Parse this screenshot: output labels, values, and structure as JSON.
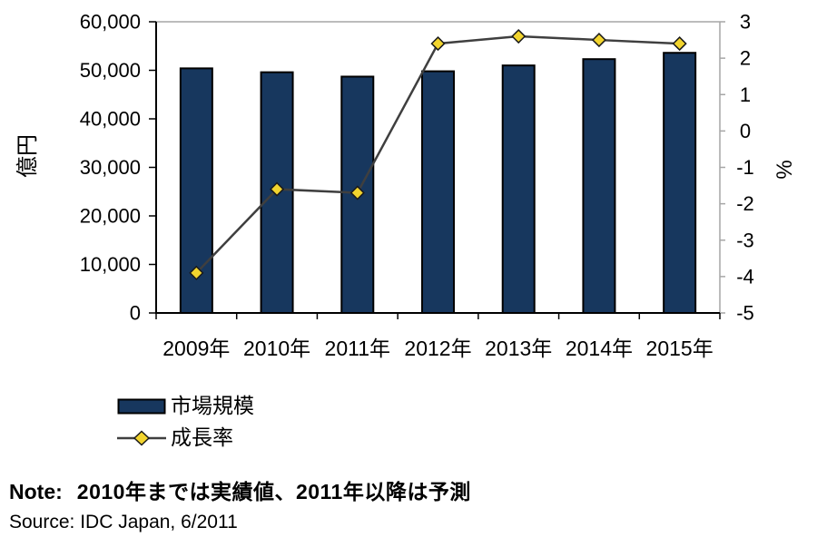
{
  "chart_data": {
    "type": "bar",
    "title": "",
    "categories": [
      "2009年",
      "2010年",
      "2011年",
      "2012年",
      "2013年",
      "2014年",
      "2015年"
    ],
    "series": [
      {
        "name": "市場規模",
        "type": "bar",
        "axis": "left",
        "values": [
          50400,
          49600,
          48700,
          49800,
          51000,
          52300,
          53600
        ],
        "color": "#17375E",
        "border_color": "#000000"
      },
      {
        "name": "成長率",
        "type": "line",
        "axis": "right",
        "values": [
          -3.9,
          -1.6,
          -1.7,
          2.4,
          2.6,
          2.5,
          2.4
        ],
        "line_color": "#3F3F3F",
        "marker": "diamond",
        "marker_color": "#F2D42E",
        "marker_border_color": "#1A1A1A"
      }
    ],
    "left_axis": {
      "title": "億円",
      "min": 0,
      "max": 60000,
      "step": 10000,
      "tick_labels": [
        "0",
        "10,000",
        "20,000",
        "30,000",
        "40,000",
        "50,000",
        "60,000"
      ]
    },
    "right_axis": {
      "title": "%",
      "min": -5,
      "max": 3,
      "step": 1,
      "tick_labels": [
        "-5",
        "-4",
        "-3",
        "-2",
        "-1",
        "0",
        "1",
        "2",
        "3"
      ]
    },
    "legend_position": "bottom-left",
    "grid": false,
    "plot_border_color": "#A6A6A6",
    "axis_color": "#000000"
  },
  "note": {
    "label": "Note:",
    "text": "2010年までは実績値、2011年以降は予測"
  },
  "source": {
    "text": "Source: IDC Japan, 6/2011"
  }
}
